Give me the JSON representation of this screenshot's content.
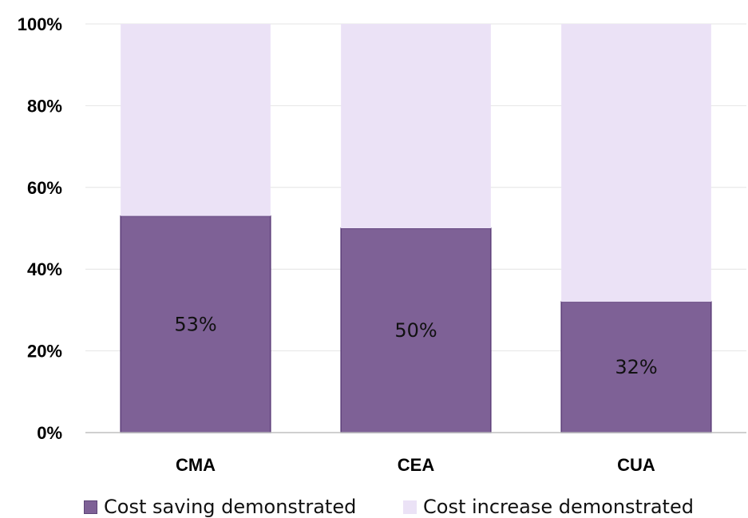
{
  "chart_data": {
    "type": "bar",
    "stacked": true,
    "percent_stacked": true,
    "categories": [
      "CMA",
      "CEA",
      "CUA"
    ],
    "series": [
      {
        "name": "Cost saving demonstrated",
        "values": [
          53,
          50,
          32
        ],
        "color": "#7e6196",
        "data_labels": [
          "53%",
          "50%",
          "32%"
        ]
      },
      {
        "name": "Cost increase demonstrated",
        "values": [
          47,
          50,
          68
        ],
        "color": "#ebe2f6"
      }
    ],
    "yticks": [
      "0%",
      "20%",
      "40%",
      "60%",
      "80%",
      "100%"
    ],
    "ylim": [
      0,
      100
    ],
    "grid": true,
    "legend": "bottom"
  }
}
